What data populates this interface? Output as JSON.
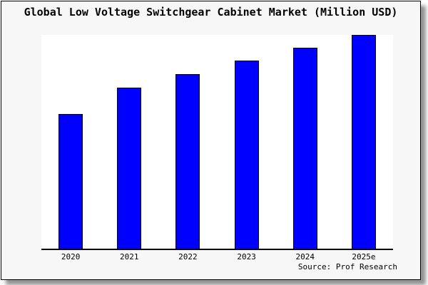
{
  "title": "Global Low Voltage Switchgear Cabinet Market (Million USD)",
  "source": "Source: Prof Research",
  "colors": {
    "bar_fill": "#0000ff",
    "bar_border": "#000000",
    "card_background": "#f7f7f7",
    "plot_background": "#ffffff",
    "text": "#000000"
  },
  "chart_data": {
    "type": "bar",
    "title": "Global Low Voltage Switchgear Cabinet Market (Million USD)",
    "categories": [
      "2020",
      "2021",
      "2022",
      "2023",
      "2024",
      "2025e"
    ],
    "values": [
      62.9,
      75.3,
      81.6,
      88.0,
      94.0,
      100.0
    ],
    "values_note": "relative index (2025e = 100); y-axis is unlabeled in the chart",
    "xlabel": "",
    "ylabel": "",
    "ylim": [
      0,
      100.3
    ],
    "grid": false,
    "legend": false,
    "bar_color": "#0000ff",
    "source_label": "Source: Prof Research"
  }
}
